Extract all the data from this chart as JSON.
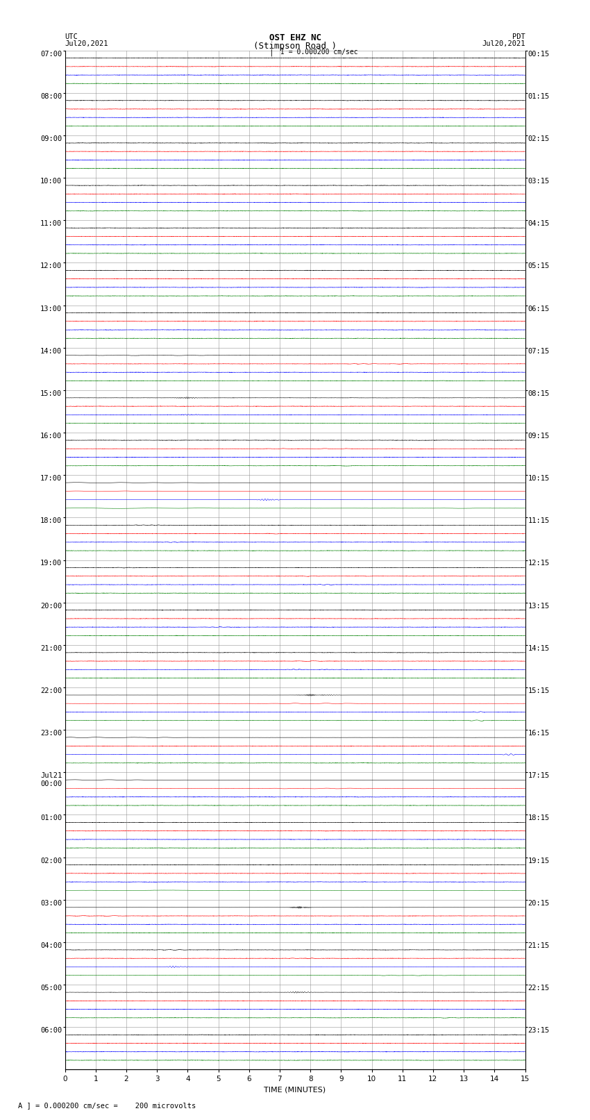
{
  "title_line1": "OST EHZ NC",
  "title_line2": "(Stimpson Road )",
  "title_line3": "I = 0.000200 cm/sec",
  "left_header_line1": "UTC",
  "left_header_line2": "Jul20,2021",
  "right_header_line1": "PDT",
  "right_header_line2": "Jul20,2021",
  "xlabel": "TIME (MINUTES)",
  "footer": "A ] = 0.000200 cm/sec =    200 microvolts",
  "utc_labels": [
    "07:00",
    "08:00",
    "09:00",
    "10:00",
    "11:00",
    "12:00",
    "13:00",
    "14:00",
    "15:00",
    "16:00",
    "17:00",
    "18:00",
    "19:00",
    "20:00",
    "21:00",
    "22:00",
    "23:00",
    "Jul21\n00:00",
    "01:00",
    "02:00",
    "03:00",
    "04:00",
    "05:00",
    "06:00"
  ],
  "pdt_labels": [
    "00:15",
    "01:15",
    "02:15",
    "03:15",
    "04:15",
    "05:15",
    "06:15",
    "07:15",
    "08:15",
    "09:15",
    "10:15",
    "11:15",
    "12:15",
    "13:15",
    "14:15",
    "15:15",
    "16:15",
    "17:15",
    "18:15",
    "19:15",
    "20:15",
    "21:15",
    "22:15",
    "23:15"
  ],
  "num_rows": 24,
  "traces_per_row": 4,
  "minutes": 15,
  "colors": [
    "black",
    "red",
    "blue",
    "green"
  ],
  "background": "white",
  "grid_color": "#888888",
  "noise_scale": 0.025,
  "title_fontsize": 9,
  "label_fontsize": 8,
  "tick_fontsize": 7.5
}
